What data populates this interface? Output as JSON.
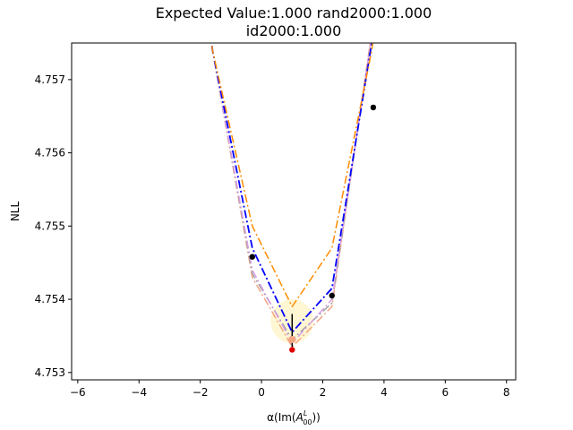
{
  "chart_data": {
    "type": "line",
    "title_lines": [
      "Expected Value:1.000       rand2000:1.000",
      "id2000:1.000"
    ],
    "xlabel_prefix": "α(Im(",
    "xlabel_symbol": "A",
    "xlabel_sup": "L",
    "xlabel_sub": "00",
    "xlabel_suffix": "))",
    "ylabel": "NLL",
    "xlim": [
      -6.2,
      8.3
    ],
    "ylim": [
      4.7529,
      4.7575
    ],
    "x_ticks": [
      -6,
      -4,
      -2,
      0,
      2,
      4,
      6,
      8
    ],
    "x_tick_labels": [
      "−6",
      "−4",
      "−2",
      "0",
      "2",
      "4",
      "6",
      "8"
    ],
    "y_ticks": [
      4.753,
      4.754,
      4.755,
      4.756,
      4.757
    ],
    "y_tick_labels": [
      "4.753",
      "4.754",
      "4.755",
      "4.756",
      "4.757"
    ],
    "grid": false,
    "series": [
      {
        "color": "#ff8c00",
        "style": "dashdot",
        "width": 1.5,
        "x": [
          -3.0,
          -1.6,
          -0.3,
          1.0,
          2.3,
          3.6,
          5.0
        ],
        "y": [
          4.762,
          4.7574,
          4.755,
          4.7539,
          4.7547,
          4.7574,
          4.762
        ]
      },
      {
        "color": "#0000ff",
        "style": "dashdot",
        "width": 1.8,
        "x": [
          -3.0,
          -1.6,
          -0.3,
          1.0,
          2.3,
          3.6,
          5.0
        ],
        "y": [
          4.762,
          4.7574,
          4.7547,
          4.75355,
          4.75415,
          4.7575,
          4.762
        ]
      },
      {
        "color": "#d8a0e8",
        "style": "dashdot",
        "width": 1.5,
        "x": [
          -3.0,
          -1.6,
          -0.3,
          1.0,
          2.3,
          3.6,
          5.0
        ],
        "y": [
          4.762,
          4.7574,
          4.7544,
          4.7534,
          4.754,
          4.7576,
          4.762
        ]
      },
      {
        "color": "#a0a0a0",
        "style": "dashdot",
        "width": 1.5,
        "x": [
          -3.0,
          -1.6,
          -0.3,
          1.0,
          2.3,
          3.6,
          5.0
        ],
        "y": [
          4.762,
          4.7574,
          4.75435,
          4.75345,
          4.75395,
          4.7576,
          4.762
        ]
      },
      {
        "color": "#f4a582",
        "style": "dashdot",
        "width": 1.5,
        "x": [
          -3.0,
          -1.6,
          -0.3,
          1.0,
          2.3,
          3.6,
          5.0
        ],
        "y": [
          4.762,
          4.7574,
          4.7543,
          4.75335,
          4.7539,
          4.75765,
          4.762
        ]
      }
    ],
    "points": [
      {
        "x": -0.3,
        "y": 4.75458,
        "color": "#000000"
      },
      {
        "x": 2.3,
        "y": 4.75405,
        "color": "#000000"
      },
      {
        "x": 3.65,
        "y": 4.75662,
        "color": "#000000"
      },
      {
        "x": 1.0,
        "y": 4.75331,
        "color": "#e00000"
      }
    ],
    "minimum_marker": {
      "x": 1.0,
      "y_low": 4.75335,
      "y_high": 4.7538,
      "dot_y": 4.75345,
      "color": "#000000",
      "dot_color": "#f4a582"
    },
    "uncertainty_region": {
      "x_range": [
        0.3,
        1.7
      ],
      "y_range": [
        4.7534,
        4.754
      ],
      "color": "#fff6cc"
    }
  }
}
